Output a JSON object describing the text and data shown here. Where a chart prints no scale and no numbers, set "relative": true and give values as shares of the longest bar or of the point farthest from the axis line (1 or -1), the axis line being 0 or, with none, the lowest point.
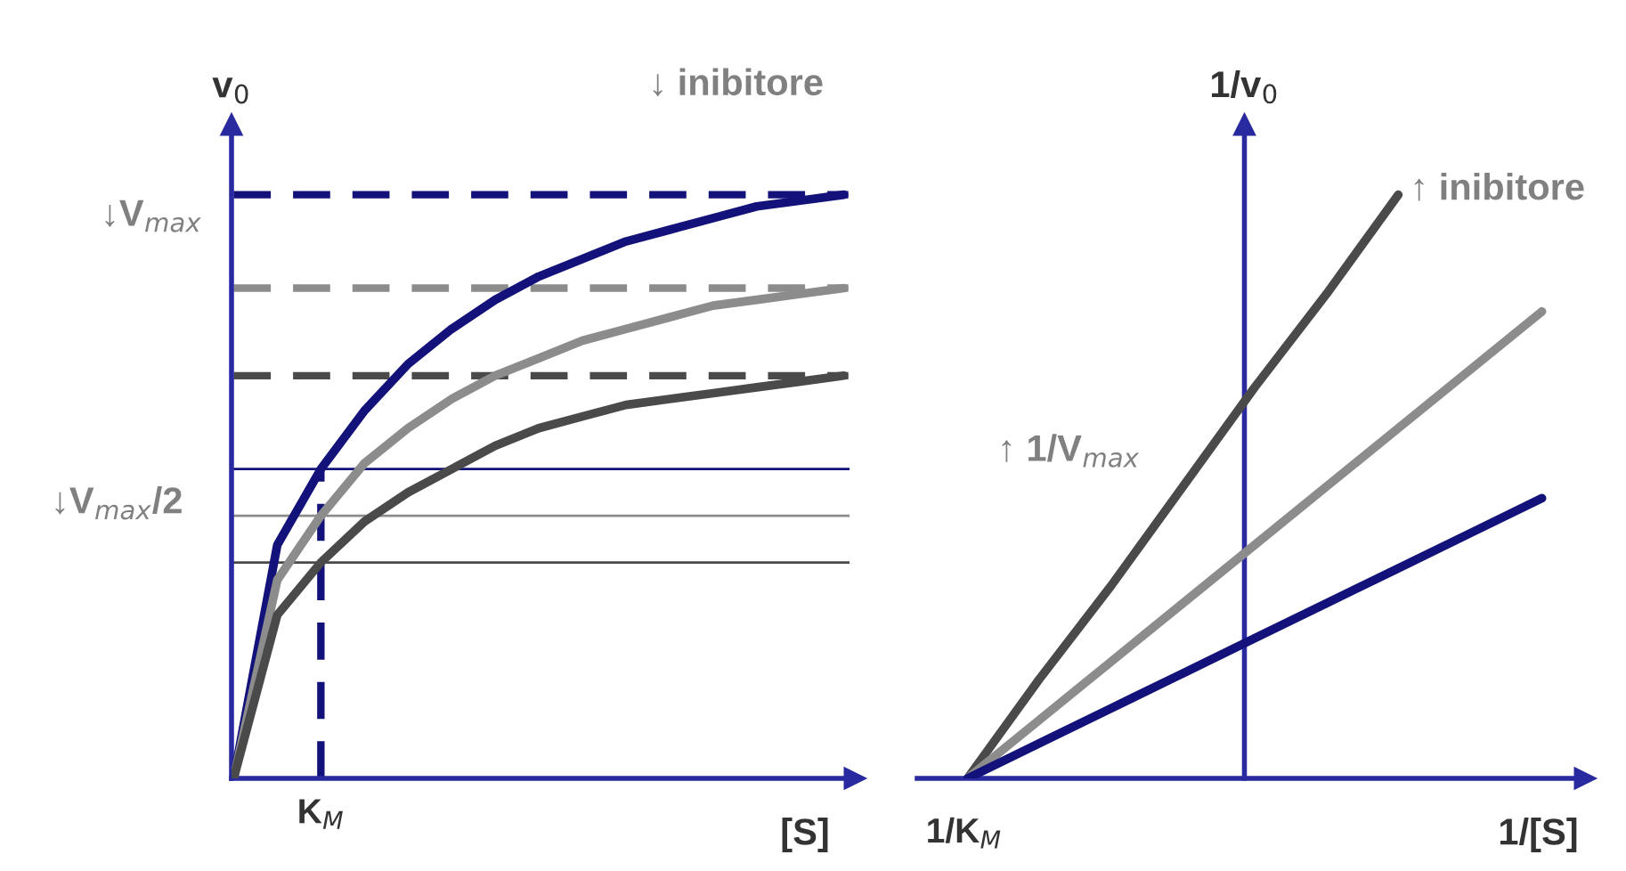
{
  "chart_data": [
    {
      "type": "line",
      "relative": true,
      "ylabel": "v$_{0}$",
      "xlabel": "[S]",
      "categories": [
        null,
        null,
        null,
        null,
        null,
        null,
        null,
        null,
        null,
        null,
        null,
        null,
        null,
        null,
        null
      ],
      "series": [
        {
          "color": "#12127a",
          "values": [
            0,
            0.4,
            0.53,
            0.63,
            0.71,
            0.77,
            0.82,
            0.86,
            0.89,
            0.92,
            0.94,
            0.96,
            0.98,
            0.99,
            1.0
          ]
        },
        {
          "color": "#8c8c8c",
          "values": [
            0,
            0.34,
            0.45,
            0.54,
            0.6,
            0.65,
            0.69,
            0.72,
            0.75,
            0.77,
            0.79,
            0.81,
            0.82,
            0.83,
            0.84
          ]
        },
        {
          "color": "#4a4a4a",
          "values": [
            0,
            0.28,
            0.37,
            0.44,
            0.49,
            0.53,
            0.57,
            0.6,
            0.62,
            0.64,
            0.65,
            0.66,
            0.67,
            0.68,
            0.69
          ]
        }
      ],
      "ref_lines": [
        {
          "axis": "y",
          "value": 1.0,
          "color": "#12127a",
          "line_style": "dashed"
        },
        {
          "axis": "y",
          "value": 0.84,
          "color": "#8c8c8c",
          "line_style": "dashed"
        },
        {
          "axis": "y",
          "value": 0.69,
          "color": "#4a4a4a",
          "line_style": "dashed"
        },
        {
          "axis": "y",
          "value": 0.53,
          "color": "#12127a",
          "line_style": "solid"
        },
        {
          "axis": "y",
          "value": 0.45,
          "color": "#8c8c8c",
          "line_style": "solid"
        },
        {
          "axis": "y",
          "value": 0.37,
          "color": "#4a4a4a",
          "line_style": "solid"
        }
      ],
      "annotations": [
        "↓ inibitore",
        "↓V$_{max}$",
        "↓V$_{max}$/2",
        "K$_{M}$"
      ],
      "legend": false,
      "marker": "none",
      "line_style": "solid"
    },
    {
      "type": "line",
      "relative": true,
      "ylabel": "1/v$_{0}$",
      "xlabel": "1/[S]",
      "categories": [
        null,
        null,
        null,
        null,
        null,
        null,
        null,
        null,
        null
      ],
      "series": [
        {
          "color": "#4a4a4a",
          "values": [
            0,
            0.17,
            0.33,
            0.5,
            0.67,
            0.83,
            1.0,
            null,
            null
          ]
        },
        {
          "color": "#8c8c8c",
          "values": [
            0,
            0.1,
            0.2,
            0.3,
            0.4,
            0.5,
            0.6,
            0.7,
            0.8
          ]
        },
        {
          "color": "#12127a",
          "values": [
            0,
            0.06,
            0.12,
            0.18,
            0.24,
            0.3,
            0.36,
            0.42,
            0.48
          ]
        }
      ],
      "annotations": [
        "↑ inibitore",
        "↑ 1/V$_{max}$",
        "1/K$_{M}$"
      ],
      "legend": false,
      "marker": "none",
      "line_style": "solid"
    }
  ]
}
